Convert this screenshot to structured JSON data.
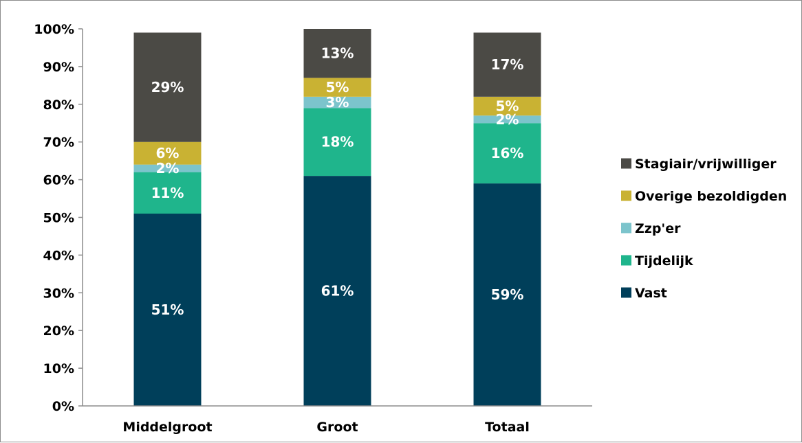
{
  "chart_data": {
    "type": "bar",
    "stacked": true,
    "categories": [
      "Middelgroot",
      "Groot",
      "Totaal"
    ],
    "y_tick_labels": [
      "0%",
      "10%",
      "20%",
      "30%",
      "40%",
      "50%",
      "60%",
      "70%",
      "80%",
      "90%",
      "100%"
    ],
    "ylim": [
      0,
      100
    ],
    "grid": false,
    "legend_position": "right",
    "series": [
      {
        "name": "Vast",
        "color": "#003f5a",
        "values": [
          51,
          61,
          59
        ],
        "labels": [
          "51%",
          "61%",
          "59%"
        ]
      },
      {
        "name": "Tijdelijk",
        "color": "#1fb58c",
        "values": [
          11,
          18,
          16
        ],
        "labels": [
          "11%",
          "18%",
          "16%"
        ]
      },
      {
        "name": "Zzp'er",
        "color": "#7cc4cc",
        "values": [
          2,
          3,
          2
        ],
        "labels": [
          "2%",
          "3%",
          "2%"
        ]
      },
      {
        "name": "Overige bezoldigden",
        "color": "#c9b233",
        "values": [
          6,
          5,
          5
        ],
        "labels": [
          "6%",
          "5%",
          "5%"
        ]
      },
      {
        "name": "Stagiair/vrijwilliger",
        "color": "#4b4a45",
        "values": [
          29,
          13,
          17
        ],
        "labels": [
          "29%",
          "13%",
          "17%"
        ]
      }
    ],
    "legend_order": [
      "Stagiair/vrijwilliger",
      "Overige bezoldigden",
      "Zzp'er",
      "Tijdelijk",
      "Vast"
    ]
  }
}
